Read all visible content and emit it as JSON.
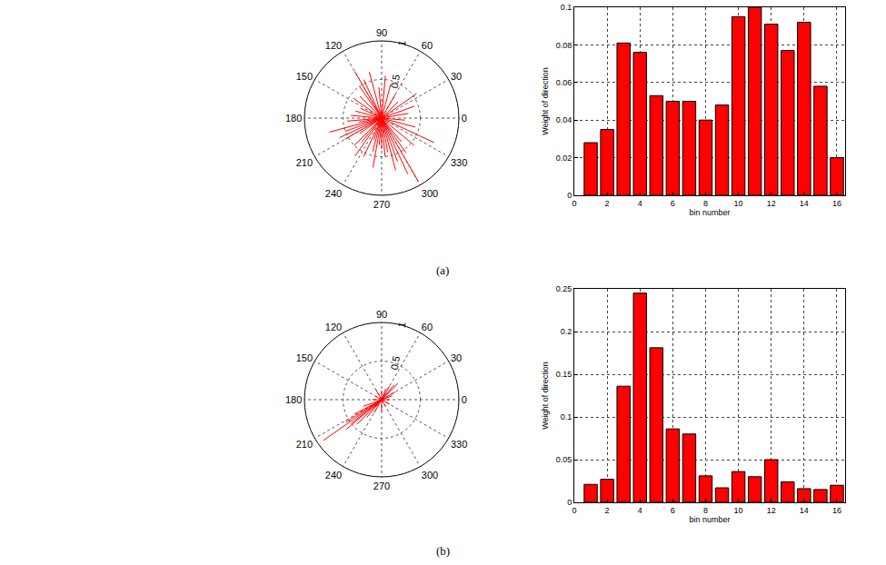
{
  "chart_data": [
    {
      "type": "compass",
      "color": "#ff0000",
      "rlim": [
        0,
        1
      ],
      "rticks": [
        0.5,
        1
      ],
      "thetaticks": [
        0,
        30,
        60,
        90,
        120,
        150,
        180,
        210,
        240,
        270,
        300,
        330
      ],
      "grid": true,
      "theta": [
        300,
        295,
        290,
        305,
        285,
        280,
        275,
        310,
        320,
        335,
        345,
        355,
        10,
        20,
        35,
        45,
        60,
        75,
        85,
        95,
        105,
        115,
        120,
        125,
        135,
        145,
        155,
        165,
        175,
        185,
        195,
        200,
        205,
        210,
        215,
        225,
        235,
        245,
        255,
        260,
        265,
        270,
        250,
        230,
        190
      ],
      "r": [
        0.95,
        0.8,
        0.6,
        0.55,
        0.7,
        0.45,
        0.5,
        0.4,
        0.55,
        0.75,
        0.45,
        0.3,
        0.35,
        0.45,
        0.55,
        0.3,
        0.35,
        0.45,
        0.55,
        0.4,
        0.62,
        0.55,
        0.7,
        0.5,
        0.4,
        0.45,
        0.3,
        0.35,
        0.4,
        0.45,
        0.7,
        0.5,
        0.6,
        0.55,
        0.35,
        0.5,
        0.6,
        0.55,
        0.45,
        0.65,
        0.35,
        0.4,
        0.3,
        0.4,
        0.3
      ]
    },
    {
      "type": "bar",
      "x_label": "bin number",
      "y_label": "Weight of direction",
      "color": "#ff0000",
      "categories": [
        1,
        2,
        3,
        4,
        5,
        6,
        7,
        8,
        9,
        10,
        11,
        12,
        13,
        14,
        15,
        16
      ],
      "values": [
        0.028,
        0.035,
        0.081,
        0.076,
        0.053,
        0.05,
        0.05,
        0.04,
        0.048,
        0.095,
        0.1,
        0.091,
        0.077,
        0.092,
        0.058,
        0.02
      ],
      "xlim": [
        0,
        16.5
      ],
      "xticks": [
        0,
        2,
        4,
        6,
        8,
        10,
        12,
        14,
        16
      ],
      "ylim": [
        0,
        0.1
      ],
      "yticks": [
        0,
        0.02,
        0.04,
        0.06,
        0.08,
        0.1
      ],
      "grid": true
    },
    {
      "type": "compass",
      "color": "#ff0000",
      "rlim": [
        0,
        1
      ],
      "rticks": [
        0.5,
        1
      ],
      "thetaticks": [
        0,
        30,
        60,
        90,
        120,
        150,
        180,
        210,
        240,
        270,
        300,
        330
      ],
      "grid": true,
      "theta": [
        215,
        212,
        220,
        208,
        225,
        218,
        230,
        200,
        240,
        45,
        50,
        60,
        30,
        70,
        90,
        120,
        150,
        180,
        270,
        300,
        330,
        0,
        20
      ],
      "r": [
        0.92,
        0.55,
        0.6,
        0.4,
        0.45,
        0.5,
        0.3,
        0.25,
        0.2,
        0.3,
        0.25,
        0.2,
        0.2,
        0.15,
        0.12,
        0.15,
        0.1,
        0.12,
        0.15,
        0.1,
        0.12,
        0.1,
        0.15
      ]
    },
    {
      "type": "bar",
      "x_label": "bin number",
      "y_label": "Weight of direction",
      "color": "#ff0000",
      "categories": [
        1,
        2,
        3,
        4,
        5,
        6,
        7,
        8,
        9,
        10,
        11,
        12,
        13,
        14,
        15,
        16
      ],
      "values": [
        0.021,
        0.027,
        0.136,
        0.245,
        0.181,
        0.086,
        0.08,
        0.031,
        0.017,
        0.036,
        0.03,
        0.05,
        0.024,
        0.016,
        0.015,
        0.02
      ],
      "xlim": [
        0,
        16.5
      ],
      "xticks": [
        0,
        2,
        4,
        6,
        8,
        10,
        12,
        14,
        16
      ],
      "ylim": [
        0,
        0.25
      ],
      "yticks": [
        0,
        0.05,
        0.1,
        0.15,
        0.2,
        0.25
      ],
      "grid": true
    }
  ],
  "panel_labels": [
    "(a)",
    "(b)"
  ]
}
